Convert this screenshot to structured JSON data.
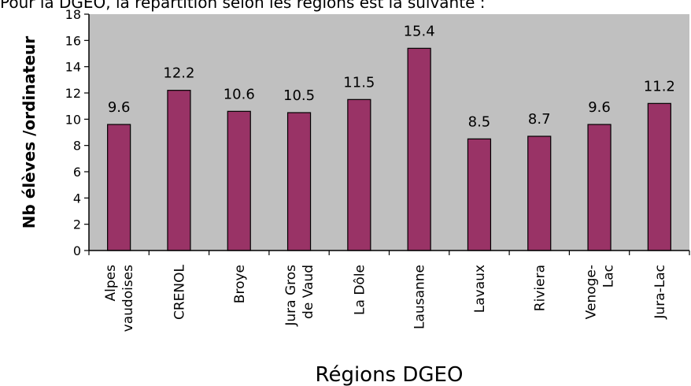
{
  "intro_text": "Pour la DGEO, la répartition selon les régions est la suivante :",
  "colors": {
    "bar": "#993366",
    "plot_background": "#c0c0c0",
    "axis": "#000000"
  },
  "chart_data": {
    "type": "bar",
    "title": "",
    "xlabel": "Régions DGEO",
    "ylabel": "Nb élèves /ordinateur",
    "categories": [
      [
        "Alpes",
        "vaudoises"
      ],
      [
        "CRENOL"
      ],
      [
        "Broye"
      ],
      [
        "Jura Gros",
        "de Vaud"
      ],
      [
        "La Dôle"
      ],
      [
        "Lausanne"
      ],
      [
        "Lavaux"
      ],
      [
        "Riviera"
      ],
      [
        "Venoge-",
        "Lac"
      ],
      [
        "Jura-Lac"
      ]
    ],
    "values": [
      9.6,
      12.2,
      10.6,
      10.5,
      11.5,
      15.4,
      8.5,
      8.7,
      9.6,
      11.2
    ],
    "value_labels": [
      "9.6",
      "12.2",
      "10.6",
      "10.5",
      "11.5",
      "15.4",
      "8.5",
      "8.7",
      "9.6",
      "11.2"
    ],
    "yticks": [
      0,
      2,
      4,
      6,
      8,
      10,
      12,
      14,
      16,
      18
    ],
    "ylim": [
      0,
      18
    ],
    "grid": false,
    "legend": "none"
  }
}
